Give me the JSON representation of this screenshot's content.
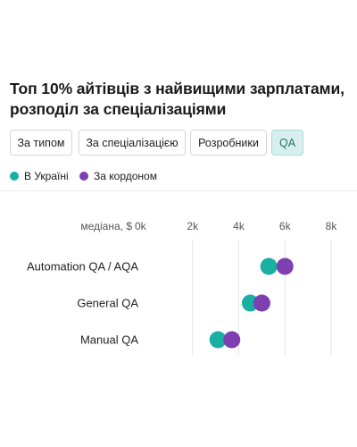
{
  "header": {
    "title": "Топ 10% айтівців з найвищими зарплатами, розподіл за спеціалізаціями"
  },
  "tabs": [
    {
      "label": "За типом",
      "active": false
    },
    {
      "label": "За спеціалізацією",
      "active": false
    },
    {
      "label": "Розробники",
      "active": false
    },
    {
      "label": "QA",
      "active": true
    }
  ],
  "colors": {
    "ukraine": "#1aafa3",
    "abroad": "#7e3fb0",
    "active_tab_bg": "#d7f0ef"
  },
  "chart_data": {
    "type": "scatter",
    "title": "Топ 10% айтівців з найвищими зарплатами, розподіл за спеціалізаціями",
    "x_axis_label": "медіана, $",
    "x_ticks": [
      "0k",
      "2k",
      "4k",
      "6k",
      "8k"
    ],
    "xlim": [
      0,
      8000
    ],
    "grid": true,
    "legend_position": "top-left",
    "categories": [
      "Automation QA / AQA",
      "General QA",
      "Manual QA"
    ],
    "series": [
      {
        "name": "В Україні",
        "color": "#1aafa3",
        "values": [
          5300,
          4500,
          3100
        ]
      },
      {
        "name": "За кордоном",
        "color": "#7e3fb0",
        "values": [
          6000,
          5000,
          3700
        ]
      }
    ]
  }
}
